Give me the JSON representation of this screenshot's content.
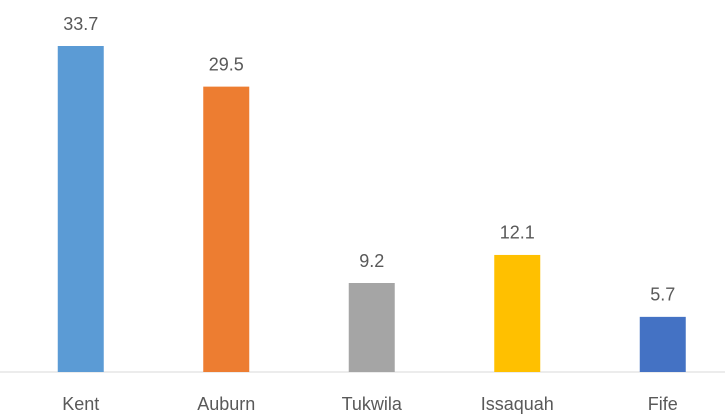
{
  "chart_data": {
    "type": "bar",
    "categories": [
      "Kent",
      "Auburn",
      "Tukwila",
      "Issaquah",
      "Fife"
    ],
    "values": [
      33.7,
      29.5,
      9.2,
      12.1,
      5.7
    ],
    "colors": [
      "#5b9bd5",
      "#ed7d31",
      "#a5a5a5",
      "#ffc000",
      "#4472c4"
    ]
  }
}
